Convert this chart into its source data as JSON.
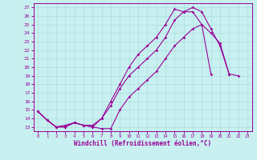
{
  "xlabel": "Windchill (Refroidissement éolien,°C)",
  "bg_color": "#c8f0f0",
  "line_color": "#990099",
  "grid_color": "#aadddd",
  "xlim": [
    -0.5,
    23.5
  ],
  "ylim": [
    12.5,
    27.5
  ],
  "yticks": [
    13,
    14,
    15,
    16,
    17,
    18,
    19,
    20,
    21,
    22,
    23,
    24,
    25,
    26,
    27
  ],
  "xticks": [
    0,
    1,
    2,
    3,
    4,
    5,
    6,
    7,
    8,
    9,
    10,
    11,
    12,
    13,
    14,
    15,
    16,
    17,
    18,
    19,
    20,
    21,
    22,
    23
  ],
  "series": [
    {
      "x": [
        0,
        1,
        2,
        3,
        4,
        5,
        6,
        7,
        8,
        9,
        10,
        11,
        12,
        13,
        14,
        15,
        16,
        17,
        18,
        19
      ],
      "y": [
        14.8,
        13.8,
        13.0,
        13.0,
        13.5,
        13.2,
        13.0,
        12.8,
        12.8,
        15.0,
        16.5,
        17.5,
        18.5,
        19.5,
        21.0,
        22.5,
        23.5,
        24.5,
        25.0,
        19.2
      ]
    },
    {
      "x": [
        0,
        1,
        2,
        3,
        4,
        5,
        6,
        7,
        8,
        9,
        10,
        11,
        12,
        13,
        14,
        15,
        16,
        17,
        18,
        19,
        20,
        21
      ],
      "y": [
        14.8,
        13.8,
        13.0,
        13.0,
        13.5,
        13.2,
        13.0,
        14.0,
        16.0,
        18.0,
        20.0,
        21.5,
        22.5,
        23.5,
        25.0,
        26.8,
        26.5,
        27.0,
        26.5,
        24.5,
        22.5,
        19.2
      ]
    },
    {
      "x": [
        0,
        1,
        2,
        3,
        4,
        5,
        6,
        7,
        8,
        9,
        10,
        11,
        12,
        13,
        14,
        15,
        16,
        17,
        18,
        19,
        20,
        21,
        22
      ],
      "y": [
        14.8,
        13.8,
        13.0,
        13.2,
        13.5,
        13.2,
        13.2,
        14.0,
        15.5,
        17.5,
        19.0,
        20.0,
        21.0,
        22.0,
        23.5,
        25.5,
        26.5,
        26.5,
        25.0,
        24.0,
        22.8,
        19.2,
        19.0
      ]
    }
  ]
}
